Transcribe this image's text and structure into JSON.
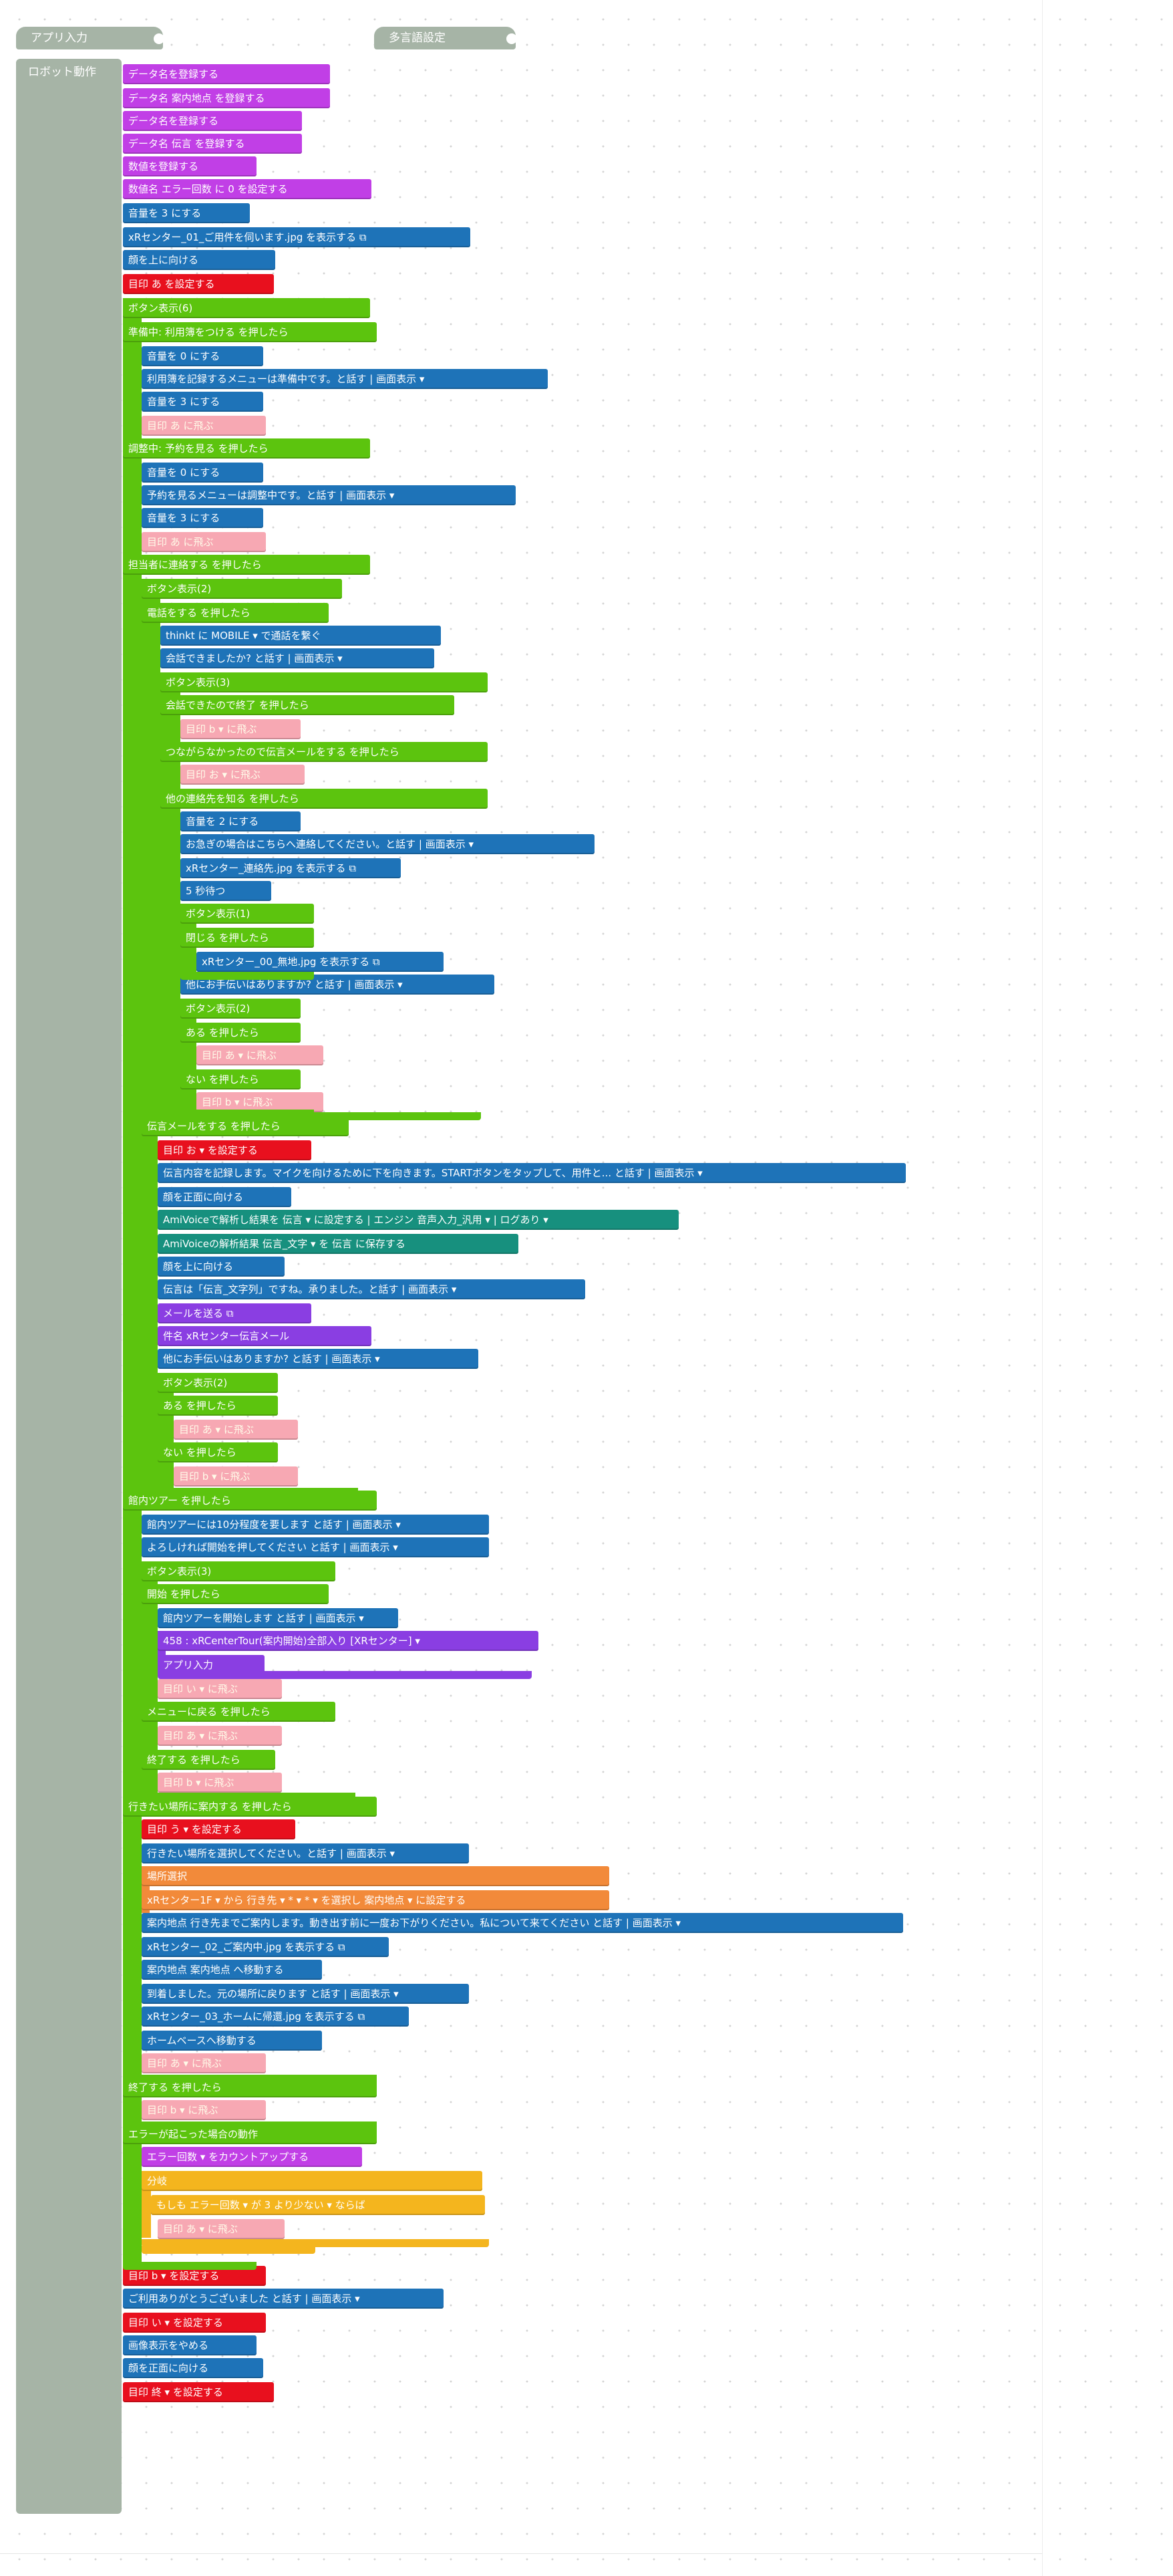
{
  "app": {
    "hat_app_input": "アプリ入力",
    "hat_multilang": "多言語設定",
    "robot_action": "ロボット動作"
  },
  "colors": {
    "purple": "#c13fe6",
    "blue": "#1e73b8",
    "red": "#e8101e",
    "green": "#5cc40e",
    "pink": "#f7a8b3",
    "teal": "#17907e",
    "orange": "#f28a3a",
    "violet": "#8a3ee2",
    "gold": "#f4b51e",
    "hat": "#a6b4a6"
  },
  "blocks": [
    {
      "c": "purple",
      "t": "データ名を登録する"
    },
    {
      "c": "purple",
      "t": "データ名 案内地点 を登録する"
    },
    {
      "c": "purple",
      "t": "データ名を登録する"
    },
    {
      "c": "purple",
      "t": "データ名 伝言 を登録する"
    },
    {
      "c": "purple",
      "t": "数値を登録する"
    },
    {
      "c": "purple",
      "t": "数値名 エラー回数 に 0 を設定する"
    },
    {
      "c": "blue",
      "t": "音量を 3 にする"
    },
    {
      "c": "blue",
      "t": "xRセンター_01_ご用件を伺います.jpg を表示する ⧉"
    },
    {
      "c": "blue",
      "t": "顔を上に向ける"
    },
    {
      "c": "red",
      "t": "目印 あ を設定する"
    },
    {
      "c": "green",
      "t": "ボタン表示(6)"
    },
    {
      "c": "green",
      "t": "準備中: 利用簿をつける を押したら"
    },
    {
      "c": "blue",
      "t": "音量を 0 にする"
    },
    {
      "c": "blue",
      "t": "利用簿を記録するメニューは準備中です。と話す | 画面表示 ▾"
    },
    {
      "c": "blue",
      "t": "音量を 3 にする"
    },
    {
      "c": "pink",
      "t": "目印 あ に飛ぶ"
    },
    {
      "c": "green",
      "t": "調整中: 予約を見る を押したら"
    },
    {
      "c": "blue",
      "t": "音量を 0 にする"
    },
    {
      "c": "blue",
      "t": "予約を見るメニューは調整中です。と話す | 画面表示 ▾"
    },
    {
      "c": "blue",
      "t": "音量を 3 にする"
    },
    {
      "c": "pink",
      "t": "目印 あ に飛ぶ"
    },
    {
      "c": "green",
      "t": "担当者に連絡する を押したら"
    },
    {
      "c": "green",
      "t": "ボタン表示(2)"
    },
    {
      "c": "green",
      "t": "電話をする を押したら"
    },
    {
      "c": "blue",
      "t": "thinkt に MOBILE ▾ で通話を繋ぐ"
    },
    {
      "c": "blue",
      "t": "会話できましたか? と話す | 画面表示 ▾"
    },
    {
      "c": "green",
      "t": "ボタン表示(3)"
    },
    {
      "c": "green",
      "t": "会話できたので終了 を押したら"
    },
    {
      "c": "pink",
      "t": "目印 b ▾ に飛ぶ"
    },
    {
      "c": "green",
      "t": "つながらなかったので伝言メールをする を押したら"
    },
    {
      "c": "pink",
      "t": "目印 お ▾ に飛ぶ"
    },
    {
      "c": "green",
      "t": "他の連絡先を知る を押したら"
    },
    {
      "c": "blue",
      "t": "音量を 2 にする"
    },
    {
      "c": "blue",
      "t": "お急ぎの場合はこちらへ連絡してください。と話す | 画面表示 ▾"
    },
    {
      "c": "blue",
      "t": "xRセンター_連絡先.jpg を表示する ⧉"
    },
    {
      "c": "blue",
      "t": "5 秒待つ"
    },
    {
      "c": "green",
      "t": "ボタン表示(1)"
    },
    {
      "c": "green",
      "t": "閉じる を押したら"
    },
    {
      "c": "blue",
      "t": "xRセンター_00_無地.jpg を表示する ⧉"
    },
    {
      "c": "blue",
      "t": "他にお手伝いはありますか? と話す | 画面表示 ▾"
    },
    {
      "c": "green",
      "t": "ボタン表示(2)"
    },
    {
      "c": "green",
      "t": "ある を押したら"
    },
    {
      "c": "pink",
      "t": "目印 あ ▾ に飛ぶ"
    },
    {
      "c": "green",
      "t": "ない を押したら"
    },
    {
      "c": "pink",
      "t": "目印 b ▾ に飛ぶ"
    },
    {
      "c": "green",
      "t": "伝言メールをする を押したら"
    },
    {
      "c": "red",
      "t": "目印 お ▾ を設定する"
    },
    {
      "c": "blue",
      "t": "伝言内容を記録します。マイクを向けるために下を向きます。STARTボタンをタップして、用件と... と話す | 画面表示 ▾"
    },
    {
      "c": "blue",
      "t": "顔を正面に向ける"
    },
    {
      "c": "teal",
      "t": "AmiVoiceで解析し結果を 伝言 ▾ に設定する | エンジン 音声入力_汎用 ▾ | ログあり ▾"
    },
    {
      "c": "teal",
      "t": "AmiVoiceの解析結果 伝言_文字 ▾ を 伝言 に保存する"
    },
    {
      "c": "blue",
      "t": "顔を上に向ける"
    },
    {
      "c": "blue",
      "t": "伝言は「伝言_文字列」ですね。承りました。と話す | 画面表示 ▾"
    },
    {
      "c": "violet",
      "t": "メールを送る ⧉"
    },
    {
      "c": "violet",
      "t": "件名 xRセンター伝言メール"
    },
    {
      "c": "blue",
      "t": "他にお手伝いはありますか? と話す | 画面表示 ▾"
    },
    {
      "c": "green",
      "t": "ボタン表示(2)"
    },
    {
      "c": "green",
      "t": "ある を押したら"
    },
    {
      "c": "pink",
      "t": "目印 あ ▾ に飛ぶ"
    },
    {
      "c": "green",
      "t": "ない を押したら"
    },
    {
      "c": "pink",
      "t": "目印 b ▾ に飛ぶ"
    },
    {
      "c": "green",
      "t": "館内ツアー を押したら"
    },
    {
      "c": "blue",
      "t": "館内ツアーには10分程度を要します と話す | 画面表示 ▾"
    },
    {
      "c": "blue",
      "t": "よろしければ開始を押してください と話す | 画面表示 ▾"
    },
    {
      "c": "green",
      "t": "ボタン表示(3)"
    },
    {
      "c": "green",
      "t": "開始 を押したら"
    },
    {
      "c": "blue",
      "t": "館内ツアーを開始します と話す | 画面表示 ▾"
    },
    {
      "c": "violet",
      "t": "458 : xRCenterTour(案内開始)全部入り [XRセンター] ▾"
    },
    {
      "c": "violet",
      "t": "アプリ入力"
    },
    {
      "c": "pink",
      "t": "目印 い ▾ に飛ぶ"
    },
    {
      "c": "green",
      "t": "メニューに戻る を押したら"
    },
    {
      "c": "pink",
      "t": "目印 あ ▾ に飛ぶ"
    },
    {
      "c": "green",
      "t": "終了する を押したら"
    },
    {
      "c": "pink",
      "t": "目印 b ▾ に飛ぶ"
    },
    {
      "c": "green",
      "t": "行きたい場所に案内する を押したら"
    },
    {
      "c": "red",
      "t": "目印 う ▾ を設定する"
    },
    {
      "c": "blue",
      "t": "行きたい場所を選択してください。と話す | 画面表示 ▾"
    },
    {
      "c": "orange",
      "t": "場所選択"
    },
    {
      "c": "orange",
      "t": "xRセンター1F ▾ から 行き先 ▾ * ▾ * ▾ を選択し 案内地点 ▾ に設定する"
    },
    {
      "c": "blue",
      "t": "案内地点 行き先までご案内します。動き出す前に一度お下がりください。私について来てください と話す | 画面表示 ▾"
    },
    {
      "c": "blue",
      "t": "xRセンター_02_ご案内中.jpg を表示する ⧉"
    },
    {
      "c": "blue",
      "t": "案内地点 案内地点 へ移動する"
    },
    {
      "c": "blue",
      "t": "到着しました。元の場所に戻ります と話す | 画面表示 ▾"
    },
    {
      "c": "blue",
      "t": "xRセンター_03_ホームに帰還.jpg を表示する ⧉"
    },
    {
      "c": "blue",
      "t": "ホームベースへ移動する"
    },
    {
      "c": "pink",
      "t": "目印 あ ▾ に飛ぶ"
    },
    {
      "c": "green",
      "t": "終了する を押したら"
    },
    {
      "c": "pink",
      "t": "目印 b ▾ に飛ぶ"
    },
    {
      "c": "green",
      "t": "エラーが起こった場合の動作"
    },
    {
      "c": "purple",
      "t": "エラー回数 ▾ をカウントアップする"
    },
    {
      "c": "gold",
      "t": "分岐"
    },
    {
      "c": "gold",
      "t": "もしも エラー回数 ▾ が 3 より少ない ▾ ならば"
    },
    {
      "c": "pink",
      "t": "目印 あ ▾ に飛ぶ"
    },
    {
      "c": "red",
      "t": "目印 b ▾ を設定する"
    },
    {
      "c": "blue",
      "t": "ご利用ありがとうございました と話す | 画面表示 ▾"
    },
    {
      "c": "red",
      "t": "目印 い ▾ を設定する"
    },
    {
      "c": "blue",
      "t": "画像表示をやめる"
    },
    {
      "c": "blue",
      "t": "顔を正面に向ける"
    },
    {
      "c": "red",
      "t": "目印 終 ▾ を設定する"
    }
  ]
}
